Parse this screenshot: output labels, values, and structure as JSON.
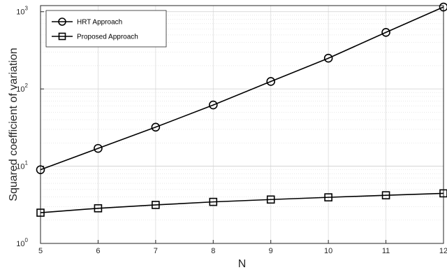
{
  "chart_data": {
    "type": "line",
    "title": "",
    "xlabel": "N",
    "ylabel": "Squared coefficient of variation",
    "x": [
      5,
      6,
      7,
      8,
      9,
      10,
      11,
      12
    ],
    "xlim": [
      5,
      12
    ],
    "ylim": [
      1,
      1200
    ],
    "yscale": "log",
    "y_ticks": [
      {
        "base": "10",
        "exp": "0",
        "value": 1
      },
      {
        "base": "10",
        "exp": "1",
        "value": 10
      },
      {
        "base": "10",
        "exp": "2",
        "value": 100
      },
      {
        "base": "10",
        "exp": "3",
        "value": 1000
      }
    ],
    "x_ticks": [
      "5",
      "6",
      "7",
      "8",
      "9",
      "10",
      "11",
      "12"
    ],
    "grid": true,
    "legend": "top-left",
    "series": [
      {
        "name": "HRT Approach",
        "marker": "circle",
        "color": "#000000",
        "values": [
          9,
          17,
          32,
          62,
          125,
          250,
          540,
          1150
        ]
      },
      {
        "name": "Proposed Approach",
        "marker": "square",
        "color": "#000000",
        "values": [
          2.5,
          2.85,
          3.15,
          3.45,
          3.7,
          3.95,
          4.2,
          4.45
        ]
      }
    ]
  }
}
